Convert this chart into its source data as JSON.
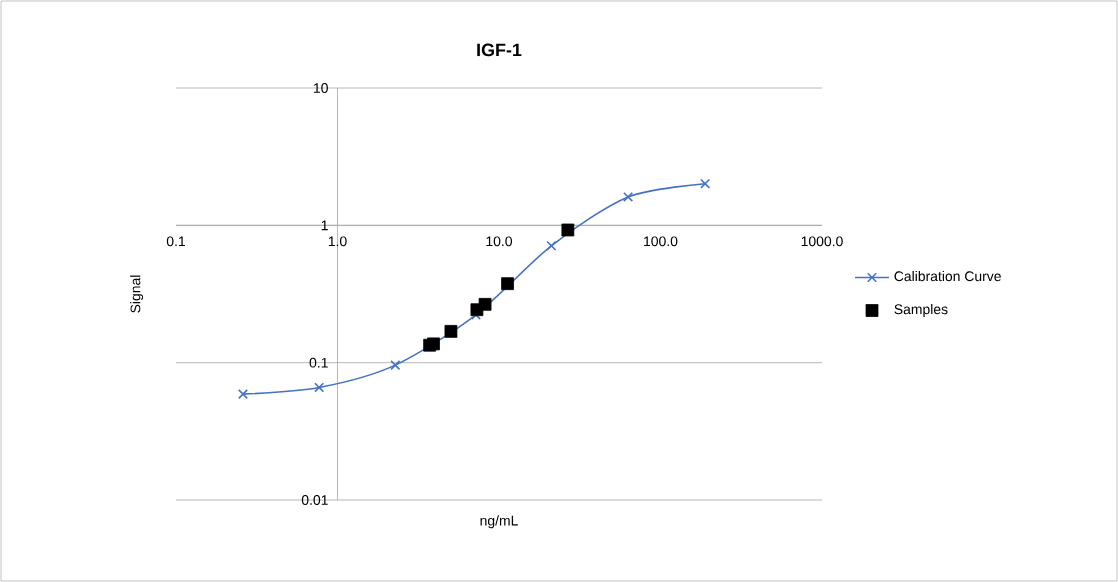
{
  "chart_data": {
    "type": "line",
    "title": "IGF-1",
    "xlabel": "ng/mL",
    "ylabel": "Signal",
    "log": "xy",
    "grid": "y",
    "legend": "right",
    "xlim": [
      0.1,
      1000
    ],
    "ylim": [
      0.01,
      10
    ],
    "xticks": [
      {
        "value": 0.1,
        "label": "0.1"
      },
      {
        "value": 1,
        "label": "1.0"
      },
      {
        "value": 10,
        "label": "10.0"
      },
      {
        "value": 100,
        "label": "100.0"
      },
      {
        "value": 1000,
        "label": "1000.0"
      }
    ],
    "yticks": [
      0.01,
      0.1,
      1,
      10
    ],
    "series": [
      {
        "name": "Calibration Curve",
        "color": "#4472c4",
        "marker": "cross",
        "x": [
          0.26,
          0.77,
          2.28,
          7.2,
          21.1,
          63,
          189
        ],
        "values": [
          0.059,
          0.066,
          0.096,
          0.223,
          0.71,
          1.61,
          2.01
        ]
      },
      {
        "name": "Samples",
        "type": "scatter",
        "color": "#000000",
        "marker": "square",
        "x": [
          3.72,
          3.93,
          5.04,
          7.3,
          8.2,
          11.3,
          26.7
        ],
        "values": [
          0.134,
          0.137,
          0.169,
          0.243,
          0.266,
          0.376,
          0.925
        ]
      }
    ]
  }
}
